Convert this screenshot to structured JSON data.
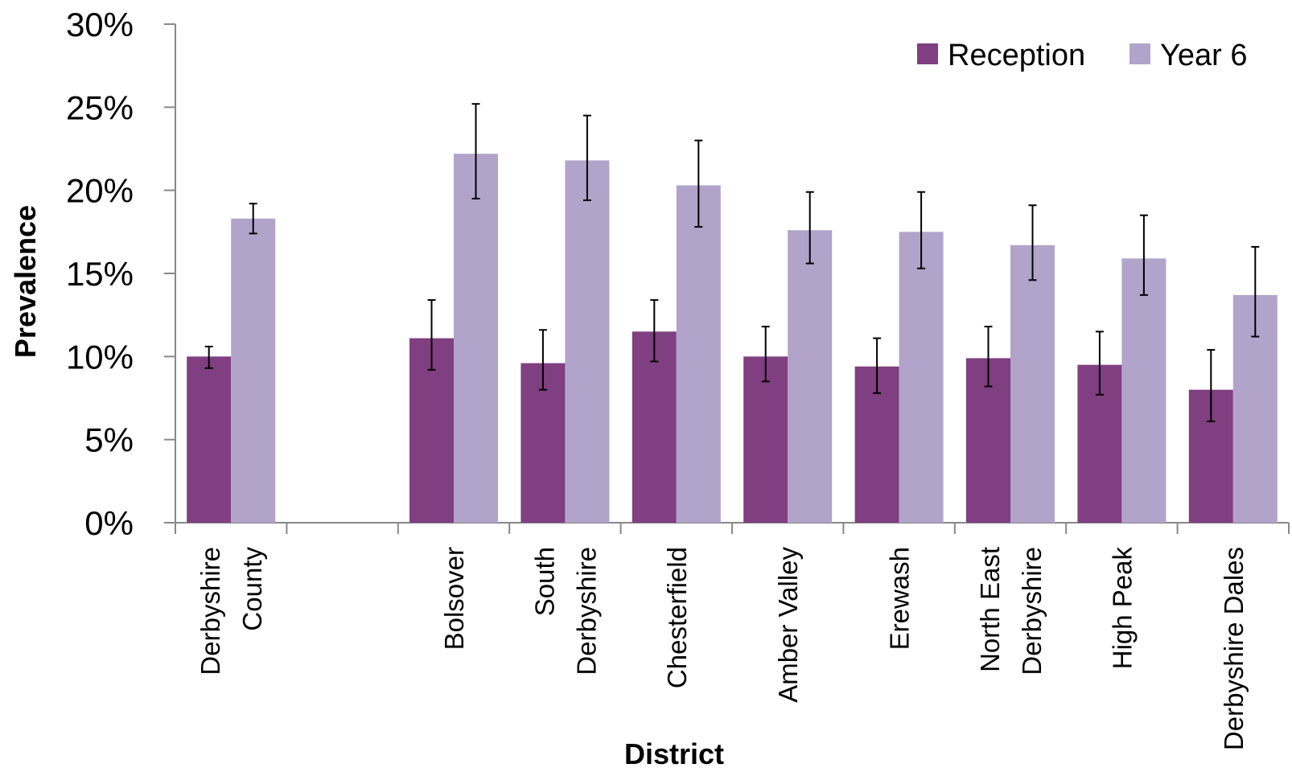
{
  "chart_data": {
    "type": "bar",
    "title": "",
    "xlabel": "District",
    "ylabel": "Prevalence",
    "ylim": [
      0,
      30
    ],
    "y_ticks": [
      "0%",
      "5%",
      "10%",
      "15%",
      "20%",
      "25%",
      "30%"
    ],
    "grid": false,
    "legend_position": "top-right",
    "categories": [
      [
        "Derbyshire",
        "County"
      ],
      [],
      [
        "Bolsover"
      ],
      [
        "South",
        "Derbyshire"
      ],
      [
        "Chesterfield"
      ],
      [
        "Amber Valley"
      ],
      [
        "Erewash"
      ],
      [
        "North East",
        "Derbyshire"
      ],
      [
        "High Peak"
      ],
      [
        "Derbyshire Dales"
      ]
    ],
    "series": [
      {
        "name": "Reception",
        "color": "#7f3f80",
        "values": [
          10.0,
          null,
          11.1,
          9.6,
          11.5,
          10.0,
          9.4,
          9.9,
          9.5,
          8.0
        ],
        "error_low": [
          9.3,
          null,
          9.2,
          8.0,
          9.7,
          8.5,
          7.8,
          8.2,
          7.7,
          6.1
        ],
        "error_high": [
          10.6,
          null,
          13.4,
          11.6,
          13.4,
          11.8,
          11.1,
          11.8,
          11.5,
          10.4
        ]
      },
      {
        "name": "Year 6",
        "color": "#b2a3ca",
        "values": [
          18.3,
          null,
          22.2,
          21.8,
          20.3,
          17.6,
          17.5,
          16.7,
          15.9,
          13.7
        ],
        "error_low": [
          17.4,
          null,
          19.5,
          19.4,
          17.8,
          15.6,
          15.3,
          14.6,
          13.7,
          11.2
        ],
        "error_high": [
          19.2,
          null,
          25.2,
          24.5,
          23.0,
          19.9,
          19.9,
          19.1,
          18.5,
          16.6
        ]
      }
    ]
  }
}
